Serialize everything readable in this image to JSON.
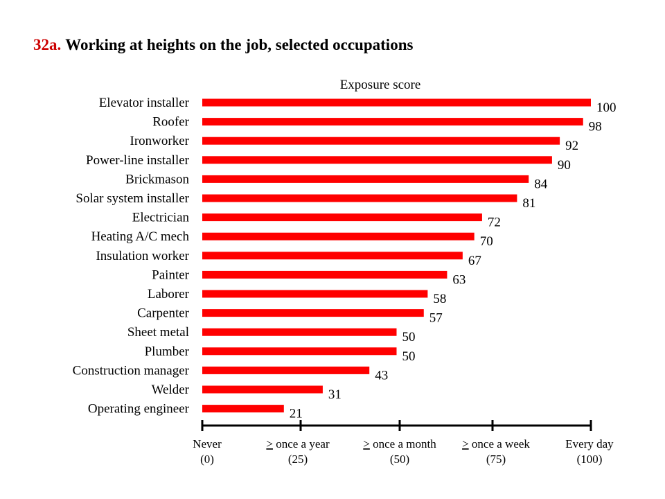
{
  "chart_data": {
    "type": "bar",
    "orientation": "horizontal",
    "title_number": "32a.",
    "title": "Working at heights on the job, selected occupations",
    "xlabel": "Exposure score",
    "xlim": [
      0,
      100
    ],
    "bar_color": "#ff0000",
    "title_number_color": "#cc0000",
    "categories": [
      "Elevator installer",
      "Roofer",
      "Ironworker",
      "Power-line installer",
      "Brickmason",
      "Solar system installer",
      "Electrician",
      "Heating A/C mech",
      "Insulation worker",
      "Painter",
      "Laborer",
      "Carpenter",
      "Sheet metal",
      "Plumber",
      "Construction manager",
      "Welder",
      "Operating engineer"
    ],
    "values": [
      100,
      98,
      92,
      90,
      84,
      81,
      72,
      70,
      67,
      63,
      58,
      57,
      50,
      50,
      43,
      31,
      21
    ],
    "axis_ticks": [
      {
        "value": 0,
        "prefix": "",
        "label": "Never",
        "sub": "(0)"
      },
      {
        "value": 25,
        "prefix": ">",
        "label": " once a year",
        "sub": "(25)"
      },
      {
        "value": 50,
        "prefix": ">",
        "label": " once a month",
        "sub": "(50)"
      },
      {
        "value": 75,
        "prefix": ">",
        "label": " once a week",
        "sub": "(75)"
      },
      {
        "value": 100,
        "prefix": "",
        "label": "Every day",
        "sub": "(100)"
      }
    ],
    "grid": false
  }
}
